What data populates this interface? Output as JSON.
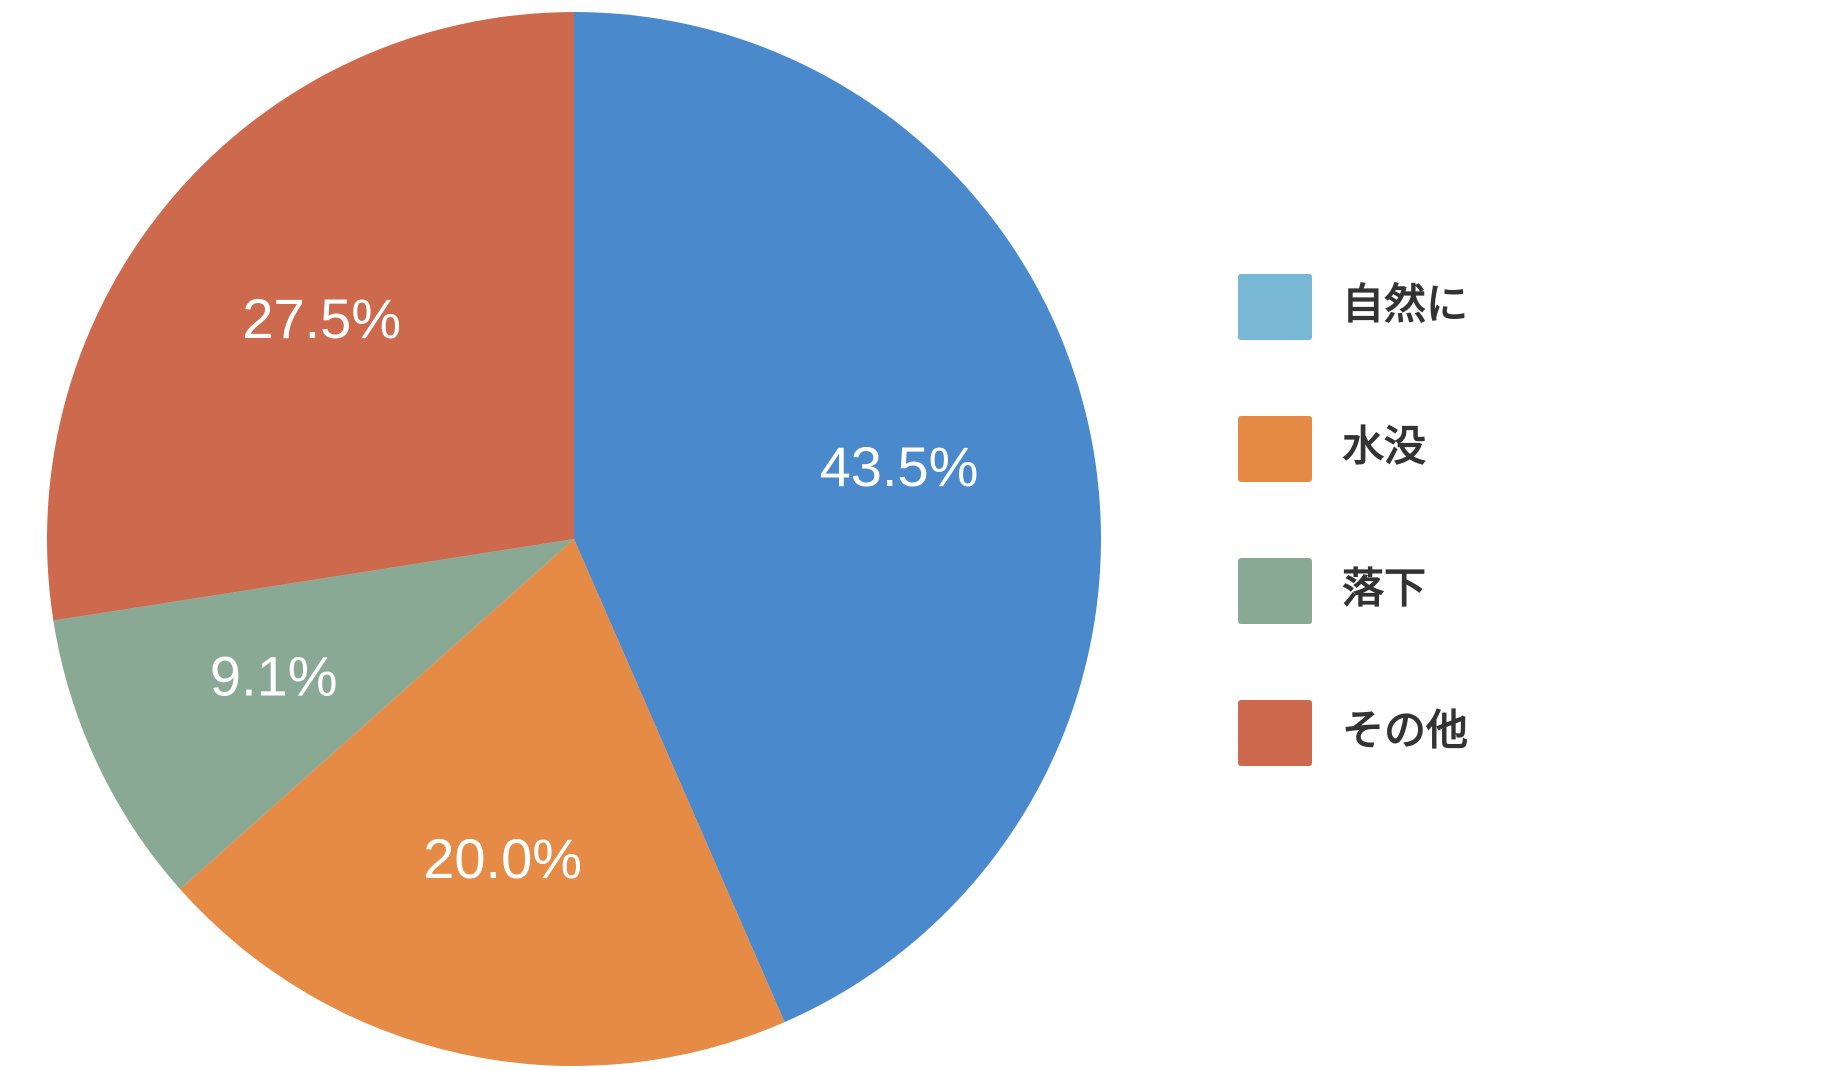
{
  "chart_data": {
    "type": "pie",
    "categories": [
      "自然に",
      "水没",
      "落下",
      "その他"
    ],
    "values": [
      43.5,
      20.0,
      9.1,
      27.5
    ],
    "value_labels": [
      "43.5%",
      "20.0%",
      "9.1%",
      "27.5%"
    ],
    "colors": [
      "#4a89cc",
      "#e68b45",
      "#8aa995",
      "#cd6a4d"
    ],
    "legend_colors": [
      "#78b8d4",
      "#e68b45",
      "#8aa995",
      "#cd6a4d"
    ],
    "legend": "right"
  }
}
